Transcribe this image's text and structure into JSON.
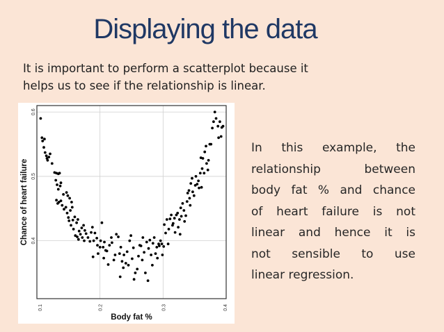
{
  "slide": {
    "title": "Displaying the data",
    "intro_lines": [
      "It is important to perform a scatterplot because it",
      "helps us to see if the relationship is linear."
    ],
    "body_lines": [
      "In this example, the",
      "relationship between",
      "body fat % and chance",
      "of heart failure is not",
      "linear and hence it is",
      "not sensible to use",
      "linear regression."
    ],
    "colors": {
      "background": "#fbe5d6",
      "title": "#1f3864",
      "text": "#262626",
      "points": "#000000"
    }
  },
  "chart_data": {
    "type": "scatter",
    "title": "",
    "xlabel": "Body fat %",
    "ylabel": "Chance of heart failure",
    "xlim": [
      0.1,
      0.4
    ],
    "ylim": [
      0.31,
      0.61
    ],
    "xticks": [
      "0.1",
      "0.2",
      "0.3",
      "0.4"
    ],
    "yticks": [
      "0.4",
      "0.5",
      "0.6"
    ],
    "grid": true,
    "points": [
      [
        0.106,
        0.59
      ],
      [
        0.108,
        0.56
      ],
      [
        0.109,
        0.555
      ],
      [
        0.112,
        0.558
      ],
      [
        0.111,
        0.545
      ],
      [
        0.113,
        0.537
      ],
      [
        0.115,
        0.532
      ],
      [
        0.116,
        0.528
      ],
      [
        0.117,
        0.525
      ],
      [
        0.119,
        0.53
      ],
      [
        0.121,
        0.535
      ],
      [
        0.124,
        0.52
      ],
      [
        0.128,
        0.506
      ],
      [
        0.131,
        0.505
      ],
      [
        0.134,
        0.504
      ],
      [
        0.136,
        0.505
      ],
      [
        0.13,
        0.494
      ],
      [
        0.132,
        0.487
      ],
      [
        0.134,
        0.48
      ],
      [
        0.137,
        0.485
      ],
      [
        0.138,
        0.49
      ],
      [
        0.131,
        0.463
      ],
      [
        0.133,
        0.458
      ],
      [
        0.135,
        0.46
      ],
      [
        0.138,
        0.462
      ],
      [
        0.142,
        0.472
      ],
      [
        0.14,
        0.455
      ],
      [
        0.143,
        0.449
      ],
      [
        0.146,
        0.452
      ],
      [
        0.147,
        0.475
      ],
      [
        0.149,
        0.47
      ],
      [
        0.152,
        0.466
      ],
      [
        0.148,
        0.443
      ],
      [
        0.15,
        0.436
      ],
      [
        0.153,
        0.447
      ],
      [
        0.155,
        0.46
      ],
      [
        0.156,
        0.452
      ],
      [
        0.151,
        0.431
      ],
      [
        0.154,
        0.424
      ],
      [
        0.157,
        0.432
      ],
      [
        0.16,
        0.437
      ],
      [
        0.163,
        0.428
      ],
      [
        0.165,
        0.433
      ],
      [
        0.158,
        0.418
      ],
      [
        0.161,
        0.408
      ],
      [
        0.164,
        0.406
      ],
      [
        0.167,
        0.415
      ],
      [
        0.166,
        0.402
      ],
      [
        0.169,
        0.41
      ],
      [
        0.171,
        0.42
      ],
      [
        0.174,
        0.424
      ],
      [
        0.176,
        0.416
      ],
      [
        0.172,
        0.405
      ],
      [
        0.175,
        0.4
      ],
      [
        0.178,
        0.411
      ],
      [
        0.181,
        0.405
      ],
      [
        0.184,
        0.399
      ],
      [
        0.186,
        0.413
      ],
      [
        0.188,
        0.421
      ],
      [
        0.19,
        0.4
      ],
      [
        0.192,
        0.412
      ],
      [
        0.195,
        0.404
      ],
      [
        0.196,
        0.393
      ],
      [
        0.197,
        0.38
      ],
      [
        0.2,
        0.39
      ],
      [
        0.201,
        0.4
      ],
      [
        0.203,
        0.428
      ],
      [
        0.205,
        0.39
      ],
      [
        0.207,
        0.398
      ],
      [
        0.206,
        0.373
      ],
      [
        0.209,
        0.385
      ],
      [
        0.211,
        0.384
      ],
      [
        0.213,
        0.363
      ],
      [
        0.215,
        0.393
      ],
      [
        0.218,
        0.405
      ],
      [
        0.219,
        0.397
      ],
      [
        0.222,
        0.37
      ],
      [
        0.224,
        0.378
      ],
      [
        0.226,
        0.41
      ],
      [
        0.229,
        0.406
      ],
      [
        0.231,
        0.38
      ],
      [
        0.233,
        0.39
      ],
      [
        0.232,
        0.344
      ],
      [
        0.235,
        0.368
      ],
      [
        0.238,
        0.378
      ],
      [
        0.241,
        0.365
      ],
      [
        0.243,
        0.383
      ],
      [
        0.245,
        0.362
      ],
      [
        0.247,
        0.4
      ],
      [
        0.249,
        0.408
      ],
      [
        0.251,
        0.372
      ],
      [
        0.253,
        0.389
      ],
      [
        0.254,
        0.34
      ],
      [
        0.256,
        0.35
      ],
      [
        0.259,
        0.356
      ],
      [
        0.261,
        0.376
      ],
      [
        0.263,
        0.393
      ],
      [
        0.265,
        0.392
      ],
      [
        0.267,
        0.37
      ],
      [
        0.268,
        0.405
      ],
      [
        0.27,
        0.382
      ],
      [
        0.272,
        0.35
      ],
      [
        0.274,
        0.398
      ],
      [
        0.276,
        0.338
      ],
      [
        0.277,
        0.388
      ],
      [
        0.279,
        0.401
      ],
      [
        0.281,
        0.378
      ],
      [
        0.283,
        0.362
      ],
      [
        0.284,
        0.396
      ],
      [
        0.286,
        0.405
      ],
      [
        0.288,
        0.38
      ],
      [
        0.29,
        0.39
      ],
      [
        0.291,
        0.373
      ],
      [
        0.293,
        0.395
      ],
      [
        0.294,
        0.392
      ],
      [
        0.296,
        0.4
      ],
      [
        0.298,
        0.395
      ],
      [
        0.299,
        0.378
      ],
      [
        0.301,
        0.391
      ],
      [
        0.302,
        0.425
      ],
      [
        0.304,
        0.412
      ],
      [
        0.306,
        0.433
      ],
      [
        0.308,
        0.395
      ],
      [
        0.309,
        0.418
      ],
      [
        0.311,
        0.434
      ],
      [
        0.313,
        0.44
      ],
      [
        0.315,
        0.424
      ],
      [
        0.316,
        0.427
      ],
      [
        0.318,
        0.435
      ],
      [
        0.319,
        0.413
      ],
      [
        0.321,
        0.44
      ],
      [
        0.323,
        0.443
      ],
      [
        0.324,
        0.421
      ],
      [
        0.326,
        0.433
      ],
      [
        0.328,
        0.451
      ],
      [
        0.329,
        0.438
      ],
      [
        0.331,
        0.458
      ],
      [
        0.333,
        0.447
      ],
      [
        0.334,
        0.43
      ],
      [
        0.336,
        0.439
      ],
      [
        0.338,
        0.461
      ],
      [
        0.339,
        0.474
      ],
      [
        0.341,
        0.478
      ],
      [
        0.342,
        0.466
      ],
      [
        0.344,
        0.489
      ],
      [
        0.346,
        0.497
      ],
      [
        0.347,
        0.476
      ],
      [
        0.349,
        0.47
      ],
      [
        0.351,
        0.486
      ],
      [
        0.352,
        0.5
      ],
      [
        0.354,
        0.488
      ],
      [
        0.356,
        0.493
      ],
      [
        0.357,
        0.482
      ],
      [
        0.359,
        0.505
      ],
      [
        0.36,
        0.529
      ],
      [
        0.362,
        0.512
      ],
      [
        0.363,
        0.528
      ],
      [
        0.365,
        0.505
      ],
      [
        0.366,
        0.538
      ],
      [
        0.368,
        0.547
      ],
      [
        0.369,
        0.52
      ],
      [
        0.371,
        0.51
      ],
      [
        0.372,
        0.525
      ],
      [
        0.374,
        0.55
      ],
      [
        0.376,
        0.55
      ],
      [
        0.378,
        0.575
      ],
      [
        0.38,
        0.585
      ],
      [
        0.382,
        0.6
      ],
      [
        0.384,
        0.59
      ],
      [
        0.387,
        0.578
      ],
      [
        0.39,
        0.585
      ],
      [
        0.393,
        0.576
      ],
      [
        0.395,
        0.578
      ],
      [
        0.388,
        0.56
      ],
      [
        0.392,
        0.562
      ],
      [
        0.361,
        0.483
      ],
      [
        0.343,
        0.455
      ],
      [
        0.327,
        0.41
      ],
      [
        0.237,
        0.358
      ],
      [
        0.189,
        0.375
      ]
    ]
  }
}
